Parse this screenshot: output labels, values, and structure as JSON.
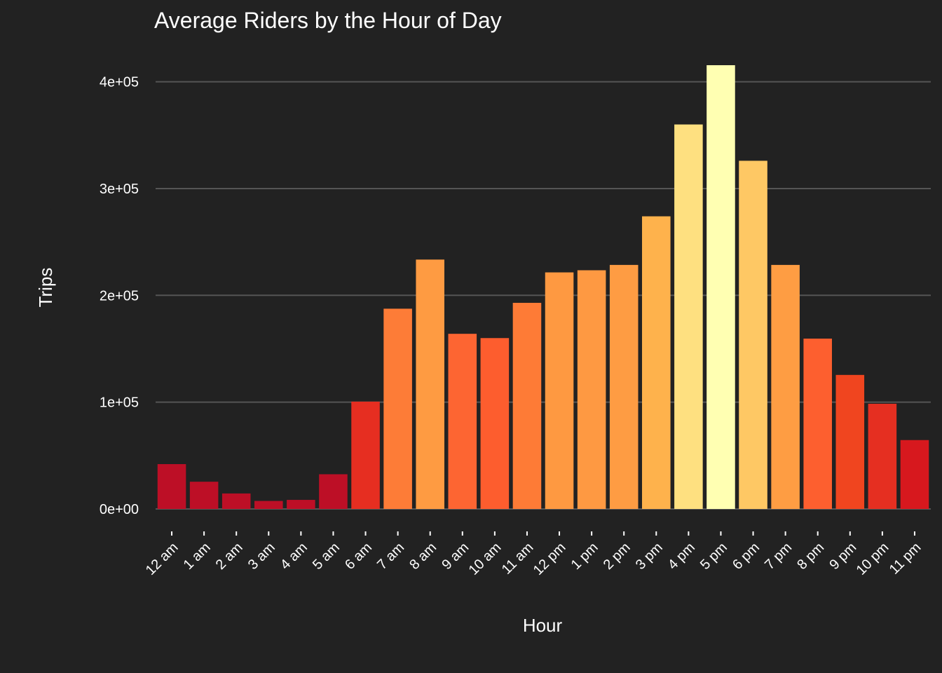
{
  "chart_data": {
    "type": "bar",
    "title": "Average Riders by the Hour of Day",
    "xlabel": "Hour",
    "ylabel": "Trips",
    "categories": [
      "12 am",
      "1 am",
      "2 am",
      "3 am",
      "4 am",
      "5 am",
      "6 am",
      "7 am",
      "8 am",
      "9 am",
      "10 am",
      "11 am",
      "12 pm",
      "1 pm",
      "2 pm",
      "3 pm",
      "4 pm",
      "5 pm",
      "6 pm",
      "7 pm",
      "8 pm",
      "9 pm",
      "10 pm",
      "11 pm"
    ],
    "values": [
      42000,
      25500,
      14500,
      7500,
      8500,
      32500,
      100500,
      187500,
      233500,
      164000,
      160000,
      193000,
      221500,
      223500,
      228500,
      274000,
      360000,
      415500,
      326000,
      228500,
      159500,
      125500,
      98500,
      64500
    ],
    "bar_colors": [
      "#bd0f26",
      "#bd0f26",
      "#bd0f26",
      "#bd0f26",
      "#bd0f26",
      "#bd0f26",
      "#e62e21",
      "#fd7c37",
      "#fe9b42",
      "#fd6532",
      "#fd5d2e",
      "#fe7b36",
      "#fe9941",
      "#fe9942",
      "#fe9c43",
      "#feb24c",
      "#fee080",
      "#ffffb2",
      "#fec864",
      "#fe9d43",
      "#fd5f2f",
      "#f0451f",
      "#e52f21",
      "#d7181e"
    ],
    "y_ticks": [
      "0e+00",
      "1e+05",
      "2e+05",
      "3e+05",
      "4e+05"
    ],
    "y_tick_values": [
      0,
      100000,
      200000,
      300000,
      400000
    ],
    "ylim": [
      0,
      415500
    ],
    "grid": true,
    "legend": "none"
  }
}
